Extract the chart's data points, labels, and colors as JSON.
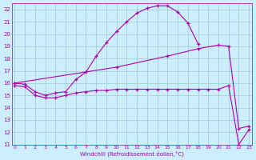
{
  "xlabel": "Windchill (Refroidissement éolien,°C)",
  "bg_color": "#cceeff",
  "grid_color": "#99cccc",
  "line_color": "#aa00aa",
  "xlim": [
    -0.3,
    23.3
  ],
  "ylim": [
    11,
    22.5
  ],
  "xticks": [
    0,
    1,
    2,
    3,
    4,
    5,
    6,
    7,
    8,
    9,
    10,
    11,
    12,
    13,
    14,
    15,
    16,
    17,
    18,
    19,
    20,
    21,
    22,
    23
  ],
  "yticks": [
    11,
    12,
    13,
    14,
    15,
    16,
    17,
    18,
    19,
    20,
    21,
    22
  ],
  "curve1_x": [
    0,
    1,
    2,
    3,
    4,
    5,
    6,
    7,
    8,
    9,
    10,
    11,
    12,
    13,
    14,
    15,
    16,
    17,
    18
  ],
  "curve1_y": [
    16.0,
    15.9,
    15.3,
    15.0,
    15.2,
    15.3,
    16.3,
    16.9,
    18.2,
    19.3,
    20.2,
    21.0,
    21.7,
    22.1,
    22.3,
    22.3,
    21.8,
    20.9,
    19.2
  ],
  "curve2_x": [
    0,
    10,
    15,
    18,
    20,
    21,
    22,
    23
  ],
  "curve2_y": [
    16.0,
    17.3,
    18.2,
    18.8,
    19.1,
    19.0,
    12.3,
    12.5
  ],
  "curve3_x": [
    0,
    1,
    2,
    3,
    4,
    5,
    6,
    7,
    8,
    9,
    10,
    11,
    12,
    13,
    14,
    15,
    16,
    17,
    18,
    19,
    20,
    21,
    22,
    23
  ],
  "curve3_y": [
    15.8,
    15.7,
    15.0,
    14.8,
    14.8,
    15.0,
    15.2,
    15.3,
    15.4,
    15.4,
    15.5,
    15.5,
    15.5,
    15.5,
    15.5,
    15.5,
    15.5,
    15.5,
    15.5,
    15.5,
    15.5,
    15.8,
    11.0,
    12.2
  ]
}
